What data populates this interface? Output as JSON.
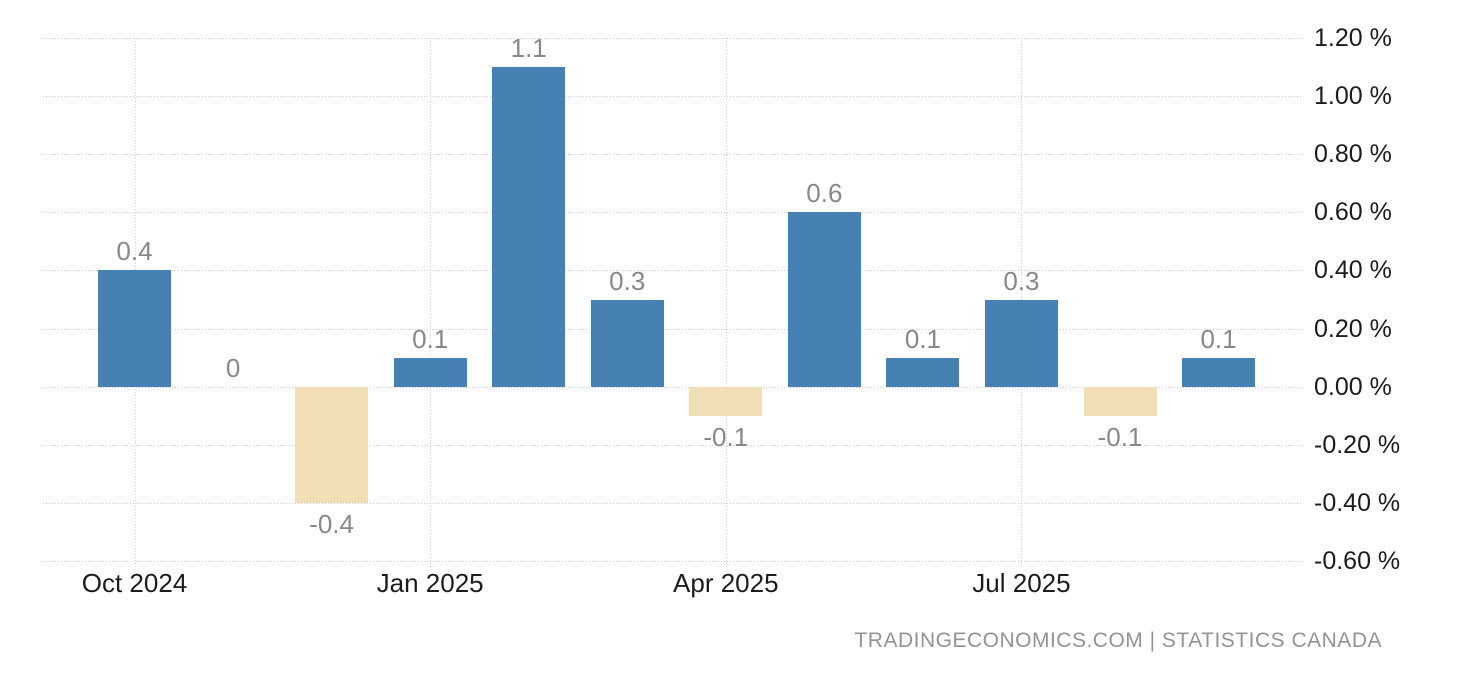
{
  "chart_data": {
    "type": "bar",
    "title": "",
    "x_tick_labels": [
      "Oct 2024",
      "Jan 2025",
      "Apr 2025",
      "Jul 2025"
    ],
    "x_tick_bar_indices": [
      0,
      3,
      6,
      9
    ],
    "values": [
      0.4,
      0,
      -0.4,
      0.1,
      1.1,
      0.3,
      -0.1,
      0.6,
      0.1,
      0.3,
      -0.1,
      0.1
    ],
    "value_labels": [
      "0.4",
      "0",
      "-0.4",
      "0.1",
      "1.1",
      "0.3",
      "-0.1",
      "0.6",
      "0.1",
      "0.3",
      "-0.1",
      "0.1"
    ],
    "y_tick_labels": [
      "1.20 %",
      "1.00 %",
      "0.80 %",
      "0.60 %",
      "0.40 %",
      "0.20 %",
      "0.00 %",
      "-0.20 %",
      "-0.40 %",
      "-0.60 %"
    ],
    "ylim": [
      -0.6,
      1.2
    ],
    "grid": "dotted",
    "legend": "none",
    "colors": {
      "positive_bar": "#4781B3",
      "negative_bar": "#F2DEB5",
      "gridline": "#c9c9c9",
      "value_label": "#888888",
      "axis_label": "#1c1c1c",
      "attribution": "#909499"
    }
  },
  "footer": {
    "attribution": "TRADINGECONOMICS.COM | STATISTICS CANADA"
  }
}
